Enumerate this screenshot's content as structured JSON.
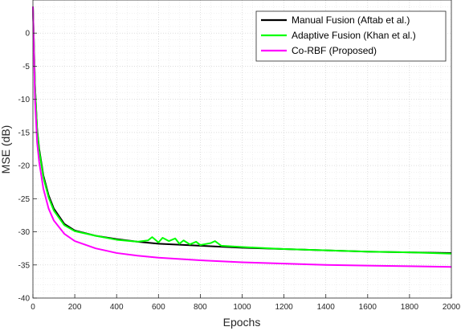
{
  "chart_data": {
    "type": "line",
    "title": "",
    "xlabel": "Epochs",
    "ylabel": "MSE (dB)",
    "xlim": [
      0,
      2000
    ],
    "ylim": [
      -40,
      5
    ],
    "xticks": [
      0,
      200,
      400,
      600,
      800,
      1000,
      1200,
      1400,
      1600,
      1800,
      2000
    ],
    "yticks": [
      0,
      -5,
      -10,
      -15,
      -20,
      -25,
      -30,
      -35,
      -40
    ],
    "xtick_labels": [
      "0",
      "200",
      "400",
      "600",
      "800",
      "1000",
      "1200",
      "1400",
      "1600",
      "1800",
      "2000"
    ],
    "ytick_labels": [
      "0",
      "-5",
      "-10",
      "-15",
      "-20",
      "-25",
      "-30",
      "-35",
      "-40"
    ],
    "grid": "on (major and minor, dotted)",
    "legend_position": "top-right",
    "series": [
      {
        "name": "Manual Fusion (Aftab et al.)",
        "color": "#000000",
        "x": [
          0,
          10,
          20,
          30,
          50,
          75,
          100,
          150,
          200,
          300,
          400,
          500,
          600,
          800,
          1000,
          1200,
          1400,
          1600,
          1800,
          2000
        ],
        "y": [
          4,
          -8,
          -14.5,
          -17.5,
          -21.5,
          -24.5,
          -26.5,
          -28.8,
          -29.8,
          -30.6,
          -31.1,
          -31.5,
          -31.8,
          -32.1,
          -32.4,
          -32.6,
          -32.8,
          -33.0,
          -33.1,
          -33.2
        ]
      },
      {
        "name": "Adaptive Fusion (Khan et al.)",
        "color": "#00ff00",
        "x": [
          0,
          10,
          20,
          30,
          50,
          75,
          100,
          150,
          200,
          300,
          400,
          500,
          550,
          570,
          600,
          620,
          650,
          680,
          700,
          720,
          750,
          780,
          800,
          850,
          870,
          900,
          1000,
          1200,
          1400,
          1600,
          1800,
          2000
        ],
        "y": [
          4,
          -8,
          -14.7,
          -17.8,
          -21.8,
          -24.8,
          -26.8,
          -29.0,
          -29.9,
          -30.6,
          -31.2,
          -31.5,
          -31.3,
          -30.8,
          -31.6,
          -30.9,
          -31.4,
          -31.0,
          -31.8,
          -31.3,
          -31.9,
          -31.5,
          -32.0,
          -31.7,
          -31.4,
          -32.1,
          -32.3,
          -32.6,
          -32.8,
          -33.0,
          -33.1,
          -33.3
        ]
      },
      {
        "name": "Co-RBF (Proposed)",
        "color": "#ff00ff",
        "x": [
          0,
          10,
          20,
          30,
          50,
          75,
          100,
          150,
          200,
          300,
          400,
          500,
          600,
          800,
          1000,
          1200,
          1400,
          1600,
          1800,
          2000
        ],
        "y": [
          4,
          -10,
          -16.5,
          -19.5,
          -23.5,
          -26.5,
          -28.3,
          -30.3,
          -31.4,
          -32.5,
          -33.2,
          -33.6,
          -33.9,
          -34.3,
          -34.6,
          -34.8,
          -35.0,
          -35.1,
          -35.2,
          -35.3
        ]
      }
    ]
  }
}
